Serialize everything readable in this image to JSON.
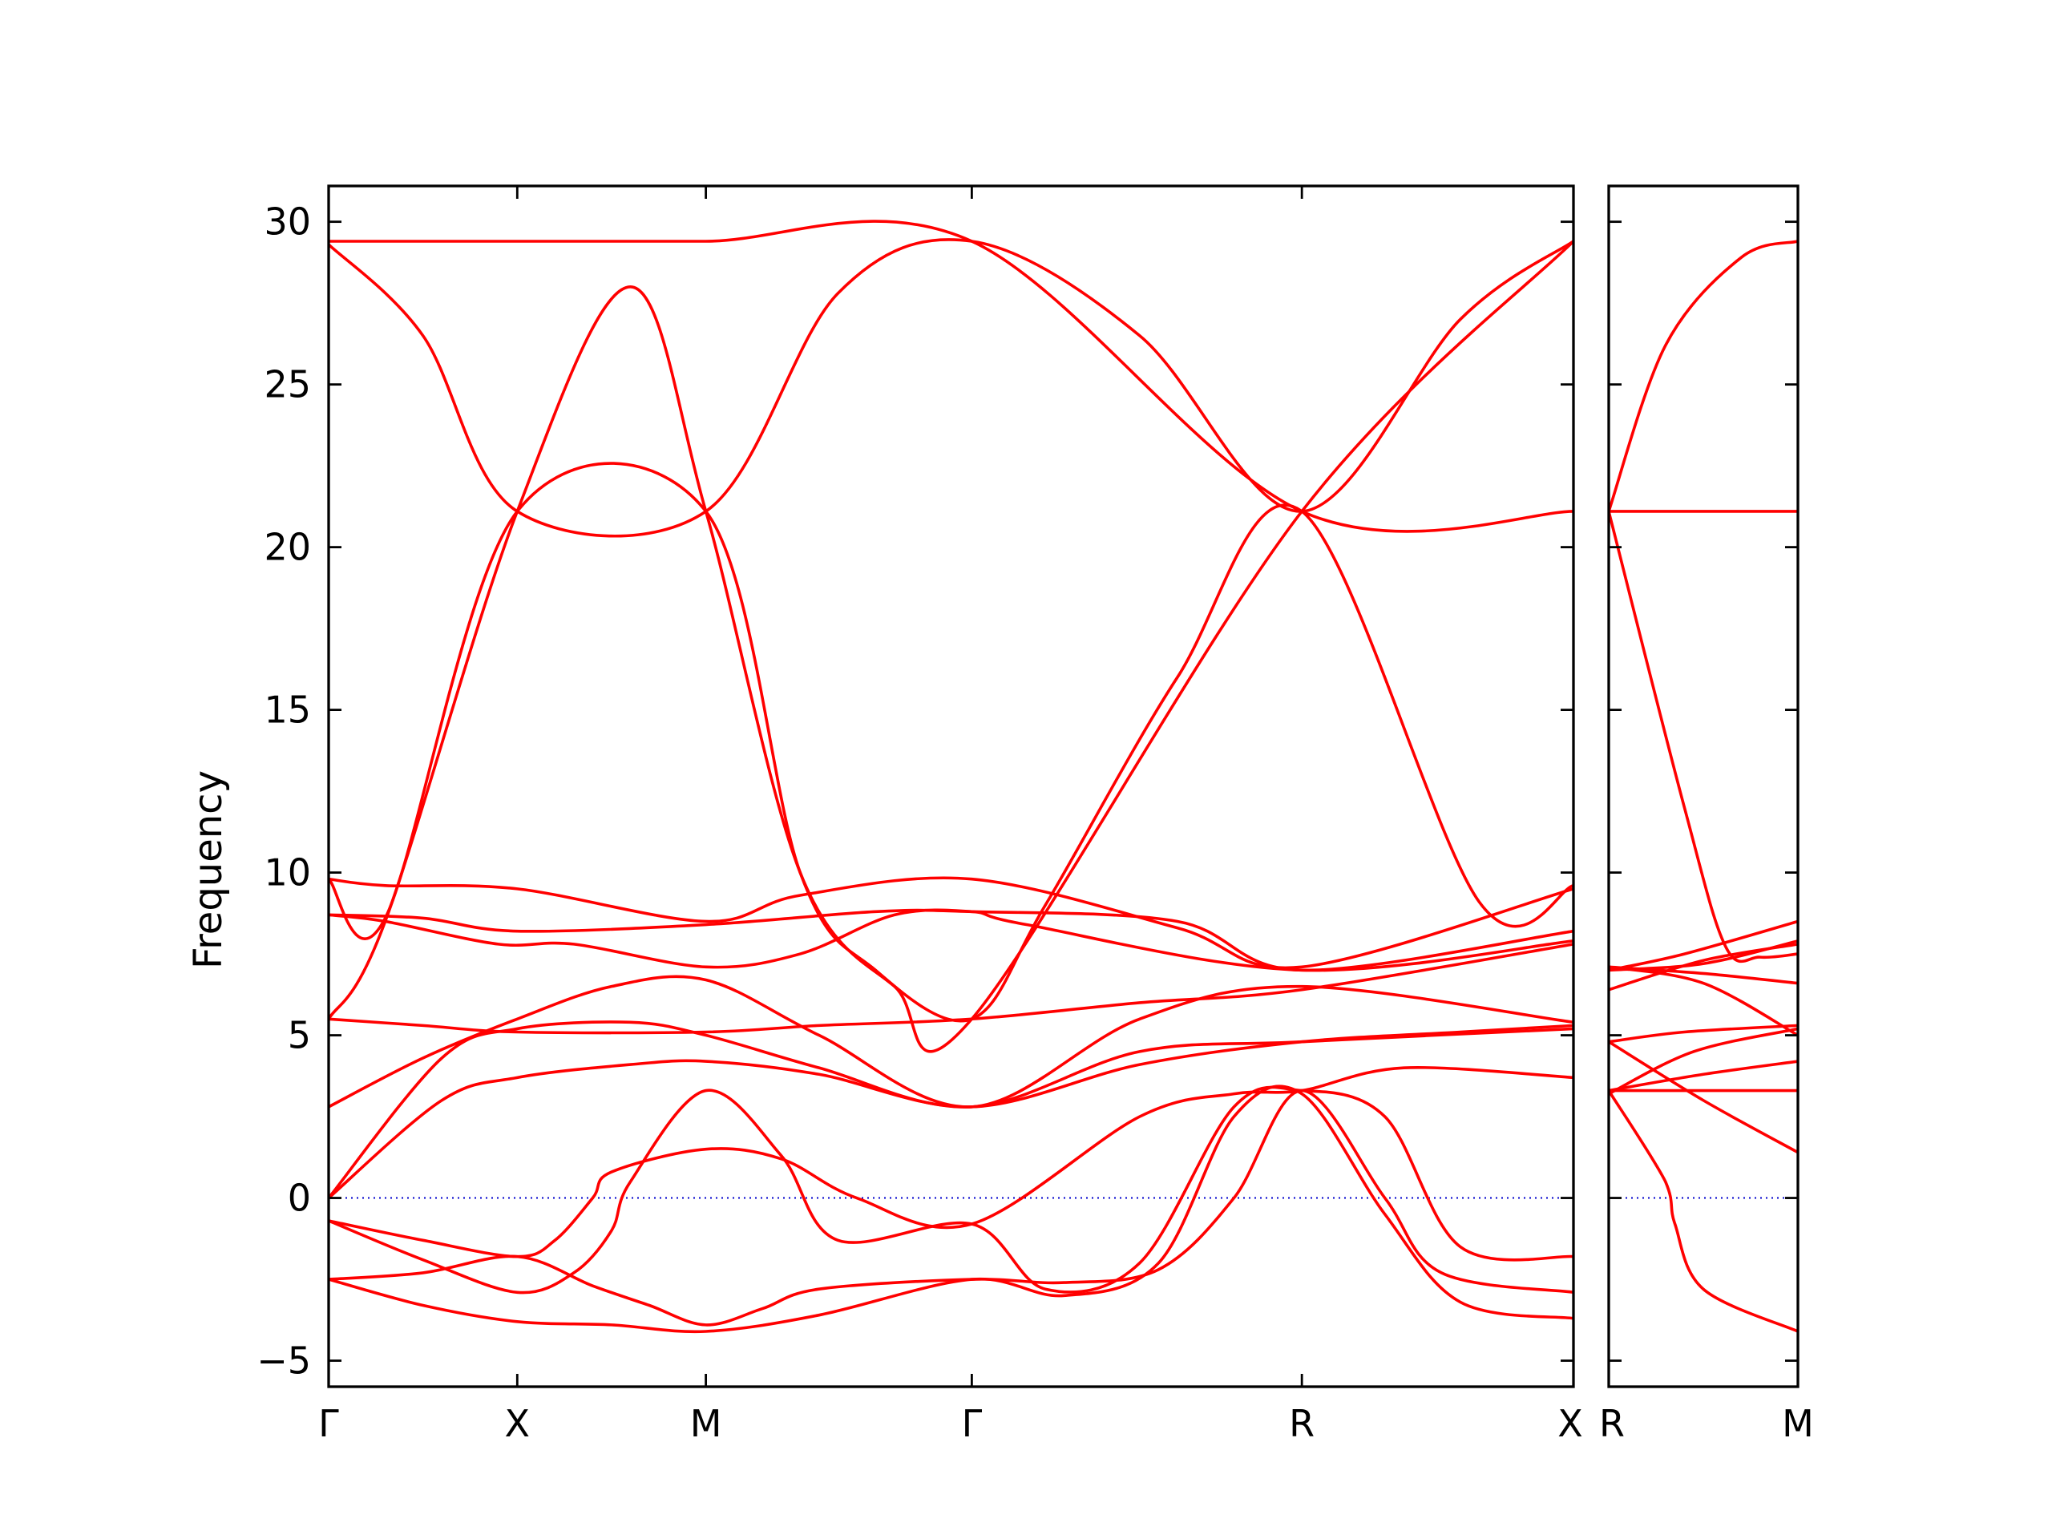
{
  "chart_data": {
    "type": "line",
    "title": "",
    "ylabel": "Frequency",
    "ylim": [
      -5.8,
      31.1
    ],
    "y_ticks": [
      -5,
      0,
      5,
      10,
      15,
      20,
      25,
      30
    ],
    "y_tick_labels": [
      "−5",
      "0",
      "5",
      "10",
      "15",
      "20",
      "25",
      "30"
    ],
    "grid": false,
    "legend": "none",
    "colors": {
      "bands": "#ff0000",
      "zero_line": "#0000cc",
      "axes": "#000000"
    },
    "panels": [
      {
        "name": "main-panel",
        "xlim": [
          0,
          6.6
        ],
        "high_symmetry_points": [
          {
            "label": "Γ",
            "x": 0.0
          },
          {
            "label": "X",
            "x": 1.0
          },
          {
            "label": "M",
            "x": 2.0
          },
          {
            "label": "Γ",
            "x": 3.41
          },
          {
            "label": "R",
            "x": 5.16
          },
          {
            "label": "X",
            "x": 6.6
          }
        ],
        "series": [
          {
            "x": [
              0,
              1,
              2,
              3.41,
              5.16,
              6.6
            ],
            "y": [
              29.4,
              29.4,
              29.4,
              29.4,
              21.1,
              21.1
            ]
          },
          {
            "x": [
              0,
              0.5,
              1,
              2,
              2.7,
              3.41,
              4.3,
              5.16,
              6.0,
              6.6
            ],
            "y": [
              29.3,
              26.5,
              21.1,
              21.1,
              27.8,
              29.4,
              26.5,
              21.1,
              27.0,
              29.4
            ]
          },
          {
            "x": [
              0,
              0.3,
              1,
              1.6,
              2,
              2.5,
              3.0,
              3.41,
              5.16,
              6.6
            ],
            "y": [
              5.5,
              8.5,
              21.1,
              28.0,
              21.1,
              10.0,
              6.5,
              5.5,
              21.1,
              29.4
            ]
          },
          {
            "x": [
              0,
              0.3,
              1,
              2,
              2.5,
              2.9,
              3.41,
              3.8,
              4.5,
              5.16,
              6.1,
              6.6
            ],
            "y": [
              9.8,
              8.6,
              21.1,
              21.1,
              10.0,
              7.0,
              5.5,
              9.0,
              16.0,
              21.1,
              9.1,
              9.6
            ]
          },
          {
            "x": [
              0,
              0.3,
              1.0,
              2,
              2.5,
              3.41,
              4.5,
              5.16,
              6.6
            ],
            "y": [
              9.8,
              9.6,
              9.5,
              8.5,
              9.3,
              9.8,
              8.3,
              7.1,
              9.5
            ]
          },
          {
            "x": [
              0,
              0.5,
              1.0,
              2,
              2.9,
              3.41,
              4.5,
              5.16,
              6.6
            ],
            "y": [
              8.7,
              8.6,
              8.2,
              8.4,
              8.8,
              8.8,
              8.5,
              7.0,
              8.2
            ]
          },
          {
            "x": [
              0,
              0.3,
              0.9,
              1.3,
              2,
              2.5,
              3.0,
              3.41,
              3.7,
              5.16,
              6.6
            ],
            "y": [
              8.7,
              8.5,
              7.8,
              7.8,
              7.1,
              7.5,
              8.7,
              8.8,
              8.4,
              7.0,
              7.9
            ]
          },
          {
            "x": [
              0,
              0.5,
              1,
              2,
              2.6,
              3.41,
              4.3,
              5.16,
              6.6
            ],
            "y": [
              5.5,
              5.3,
              5.1,
              5.1,
              5.3,
              5.5,
              6.0,
              6.4,
              7.8
            ]
          },
          {
            "x": [
              0,
              0.5,
              1,
              1.5,
              2,
              2.6,
              3.41,
              4.3,
              5.16,
              6.6
            ],
            "y": [
              2.8,
              4.3,
              5.5,
              6.5,
              6.7,
              5.0,
              2.8,
              5.5,
              6.5,
              5.4
            ]
          },
          {
            "x": [
              0,
              0.6,
              1,
              1.6,
              2,
              2.6,
              3.41,
              4.3,
              5.16,
              6.6
            ],
            "y": [
              0.0,
              4.3,
              5.2,
              5.4,
              5.0,
              4.0,
              2.8,
              4.5,
              4.8,
              5.2
            ]
          },
          {
            "x": [
              0,
              0.6,
              1,
              1.6,
              2,
              2.6,
              3.41,
              4.3,
              5.16,
              6.0,
              6.6
            ],
            "y": [
              0.0,
              3.0,
              3.7,
              4.1,
              4.2,
              3.8,
              2.8,
              4.1,
              4.8,
              5.1,
              5.3
            ]
          },
          {
            "x": [
              0,
              0.5,
              1.0,
              1.2,
              1.4,
              1.5,
              2,
              2.4,
              2.8,
              3.41,
              4.3,
              4.8,
              5.16,
              5.7,
              6.6
            ],
            "y": [
              -0.7,
              -1.3,
              -1.8,
              -1.3,
              0.0,
              0.8,
              1.5,
              1.2,
              0.0,
              -0.8,
              2.5,
              3.2,
              3.3,
              4.0,
              3.7
            ]
          },
          {
            "x": [
              0,
              0.5,
              1.0,
              1.3,
              1.5,
              1.6,
              2,
              2.4,
              2.7,
              3.41,
              3.8,
              4.3,
              4.8,
              5.16,
              5.6,
              6.0,
              6.6
            ],
            "y": [
              -0.7,
              -1.9,
              -2.9,
              -2.3,
              -1.0,
              0.5,
              3.3,
              1.3,
              -1.3,
              -0.8,
              -2.8,
              -2.0,
              2.8,
              3.3,
              2.5,
              -1.5,
              -1.8
            ]
          },
          {
            "x": [
              0,
              0.5,
              1.0,
              1.4,
              1.7,
              2,
              2.3,
              2.6,
              3.41,
              3.9,
              4.4,
              4.8,
              5.16,
              5.6,
              5.9,
              6.6
            ],
            "y": [
              -2.5,
              -2.3,
              -1.8,
              -2.7,
              -3.3,
              -3.9,
              -3.4,
              -2.8,
              -2.5,
              -2.6,
              -2.2,
              0.0,
              3.3,
              0.0,
              -2.3,
              -2.9
            ]
          },
          {
            "x": [
              0,
              0.5,
              1.0,
              1.5,
              2,
              2.6,
              3.41,
              3.9,
              4.4,
              4.8,
              5.16,
              5.6,
              6.0,
              6.6
            ],
            "y": [
              -2.5,
              -3.3,
              -3.8,
              -3.9,
              -4.1,
              -3.6,
              -2.5,
              -3.0,
              -2.0,
              2.5,
              3.2,
              -0.5,
              -3.2,
              -3.7
            ]
          }
        ]
      },
      {
        "name": "right-panel",
        "xlim": [
          0,
          1.0
        ],
        "high_symmetry_points": [
          {
            "label": "R",
            "x": 0.0
          },
          {
            "label": "M",
            "x": 1.0
          }
        ],
        "series": [
          {
            "x": [
              0,
              0.3,
              0.7,
              1.0
            ],
            "y": [
              21.1,
              26.2,
              28.9,
              29.4
            ]
          },
          {
            "x": [
              0,
              1.0
            ],
            "y": [
              21.1,
              21.1
            ]
          },
          {
            "x": [
              0,
              0.4,
              0.62,
              0.8,
              1.0
            ],
            "y": [
              21.1,
              12.0,
              7.7,
              7.4,
              7.5
            ]
          },
          {
            "x": [
              0,
              0.4,
              1.0
            ],
            "y": [
              7.0,
              7.5,
              8.5
            ]
          },
          {
            "x": [
              0,
              0.5,
              1.0
            ],
            "y": [
              7.0,
              7.2,
              7.9
            ]
          },
          {
            "x": [
              0,
              0.5,
              1.0
            ],
            "y": [
              7.1,
              6.9,
              6.6
            ]
          },
          {
            "x": [
              0,
              0.5,
              1.0
            ],
            "y": [
              6.4,
              7.3,
              7.8
            ]
          },
          {
            "x": [
              0,
              0.5,
              1.0
            ],
            "y": [
              7.1,
              6.6,
              5.0
            ]
          },
          {
            "x": [
              0,
              0.4,
              1.0
            ],
            "y": [
              4.8,
              5.1,
              5.3
            ]
          },
          {
            "x": [
              0,
              0.5,
              1.0
            ],
            "y": [
              4.8,
              3.0,
              1.4
            ]
          },
          {
            "x": [
              0,
              0.5,
              1.0
            ],
            "y": [
              3.3,
              3.8,
              4.2
            ]
          },
          {
            "x": [
              0,
              0.5,
              1.0
            ],
            "y": [
              3.3,
              3.3,
              3.3
            ]
          },
          {
            "x": [
              0,
              0.45,
              1.0
            ],
            "y": [
              3.2,
              4.5,
              5.2
            ]
          },
          {
            "x": [
              0,
              0.3,
              0.35,
              0.5,
              1.0
            ],
            "y": [
              3.3,
              0.5,
              -0.8,
              -2.8,
              -4.1
            ]
          }
        ]
      }
    ]
  }
}
